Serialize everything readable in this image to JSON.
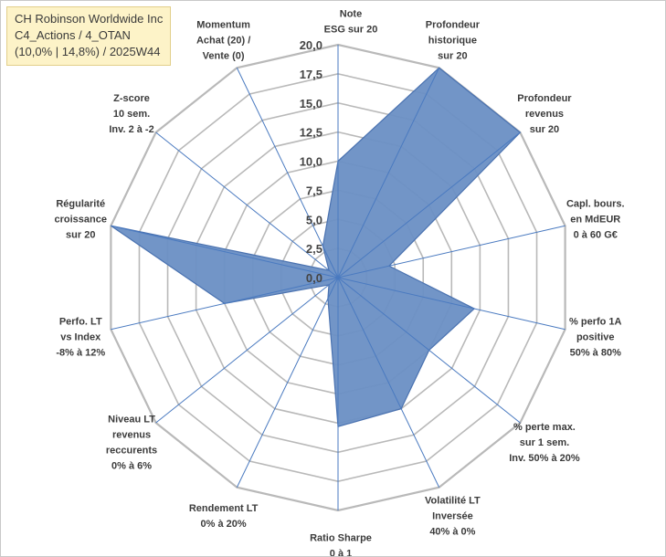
{
  "title_box": {
    "line1": "CH Robinson Worldwide Inc",
    "line2": "C4_Actions / 4_OTAN",
    "line3": "(10,0% | 14,8%) / 2025W44"
  },
  "chart_data": {
    "type": "radar",
    "title": "CH Robinson Worldwide Inc",
    "ylim": [
      0,
      20
    ],
    "tick_step": 2.5,
    "tick_labels": [
      "0,0",
      "2,5",
      "5,0",
      "7,5",
      "10,0",
      "12,5",
      "15,0",
      "17,5",
      "20,0"
    ],
    "axes": [
      {
        "label": [
          "Note",
          "ESG sur 20"
        ],
        "value": 10.0
      },
      {
        "label": [
          "Profondeur",
          "historique",
          "sur 20"
        ],
        "value": 20.0
      },
      {
        "label": [
          "Profondeur",
          "revenus",
          "sur 20"
        ],
        "value": 20.0
      },
      {
        "label": [
          "Capl. bours.",
          "en MdEUR",
          "0 à 60 G€"
        ],
        "value": 4.5
      },
      {
        "label": [
          "% perfo 1A",
          "positive",
          "50% à 80%"
        ],
        "value": 12.0
      },
      {
        "label": [
          "% perte max.",
          "sur 1 sem.",
          "Inv. 50% à 20%"
        ],
        "value": 10.0
      },
      {
        "label": [
          "Volatilité LT",
          "Inversée",
          "40% à 0%"
        ],
        "value": 12.5
      },
      {
        "label": [
          "Ratio Sharpe",
          "0 à 1"
        ],
        "value": 12.8
      },
      {
        "label": [
          "Rendement LT",
          "0% à 20%"
        ],
        "value": 2.0
      },
      {
        "label": [
          "Niveau LT",
          "revenus",
          "reccurents",
          "0% à 6%"
        ],
        "value": 1.0
      },
      {
        "label": [
          "Perfo. LT",
          "vs Index",
          "-8% à 12%"
        ],
        "value": 10.0
      },
      {
        "label": [
          "Régularité",
          "croissance",
          "sur 20"
        ],
        "value": 20.0
      },
      {
        "label": [
          "Z-score",
          "10 sem.",
          "Inv. 2 à -2"
        ],
        "value": 1.0
      },
      {
        "label": [
          "Momentum",
          "Achat (20) /",
          "Vente (0)"
        ],
        "value": 3.0
      }
    ],
    "colors": {
      "fill": "#6a8fc4",
      "outline": "#4a72b0",
      "ring": "#b9b9b9",
      "spoke": "#4a7ac0"
    }
  }
}
